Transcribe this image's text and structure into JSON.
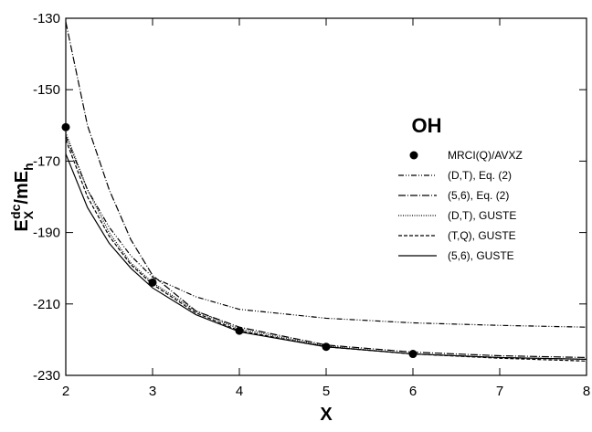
{
  "chart_data": {
    "type": "line",
    "annotation": "OH",
    "xlabel": "X",
    "ylabel_parts": [
      {
        "text": "E",
        "shift": "none"
      },
      {
        "text": "X",
        "shift": "sub"
      },
      {
        "text": "dc",
        "shift": "sup"
      },
      {
        "text": "/mE",
        "shift": "none"
      },
      {
        "text": "h",
        "shift": "sub"
      }
    ],
    "xlim": [
      2,
      8
    ],
    "xticks": [
      2,
      3,
      4,
      5,
      6,
      7,
      8
    ],
    "ylim": [
      -230,
      -130
    ],
    "yticks": [
      -130,
      -150,
      -170,
      -190,
      -210,
      -230
    ],
    "series": [
      {
        "name": "MRCI(Q)/AVXZ",
        "color": "#000000",
        "mode": "markers",
        "x": [
          2,
          3,
          4,
          5,
          6
        ],
        "values": [
          -160.5,
          -204,
          -217.5,
          -222,
          -224
        ]
      },
      {
        "name": "(D,T), Eq. (2)",
        "color": "#000000",
        "mode": "line",
        "dash": "6,2,1,2,1,2",
        "x": [
          2,
          2.25,
          2.5,
          2.75,
          3,
          3.5,
          4,
          5,
          6,
          7,
          8
        ],
        "values": [
          -163,
          -178,
          -188.5,
          -196.5,
          -202.5,
          -208,
          -211.5,
          -214,
          -215.3,
          -216,
          -216.5
        ]
      },
      {
        "name": "(5,6), Eq. (2)",
        "color": "#000000",
        "mode": "line",
        "dash": "8,2,1,2",
        "x": [
          2,
          2.25,
          2.5,
          2.75,
          3,
          3.5,
          4,
          5,
          6,
          7,
          8
        ],
        "values": [
          -131,
          -160,
          -178,
          -192,
          -202,
          -212,
          -216.5,
          -221.5,
          -223.5,
          -224.5,
          -225
        ]
      },
      {
        "name": "(D,T), GUSTE",
        "color": "#000000",
        "mode": "line",
        "dash": "1,1.5",
        "x": [
          2,
          2.25,
          2.5,
          2.75,
          3,
          3.5,
          4,
          5,
          6,
          7,
          8
        ],
        "values": [
          -162,
          -178,
          -190,
          -198.5,
          -204,
          -212,
          -217,
          -221.8,
          -224,
          -225,
          -225.5
        ]
      },
      {
        "name": "(T,Q), GUSTE",
        "color": "#000000",
        "mode": "line",
        "dash": "4,2",
        "x": [
          2,
          2.25,
          2.5,
          2.75,
          3,
          3.5,
          4,
          5,
          6,
          7,
          8
        ],
        "values": [
          -164,
          -180,
          -191,
          -199,
          -204.5,
          -212.5,
          -217.5,
          -222,
          -224,
          -225.2,
          -226
        ]
      },
      {
        "name": "(5,6), GUSTE",
        "color": "#000000",
        "mode": "line",
        "dash": "none",
        "x": [
          2,
          2.25,
          2.5,
          2.75,
          3,
          3.5,
          4,
          5,
          6,
          7,
          8
        ],
        "values": [
          -168,
          -183,
          -193,
          -200,
          -205.5,
          -213,
          -217.8,
          -222,
          -224,
          -225,
          -225.5
        ]
      }
    ]
  }
}
